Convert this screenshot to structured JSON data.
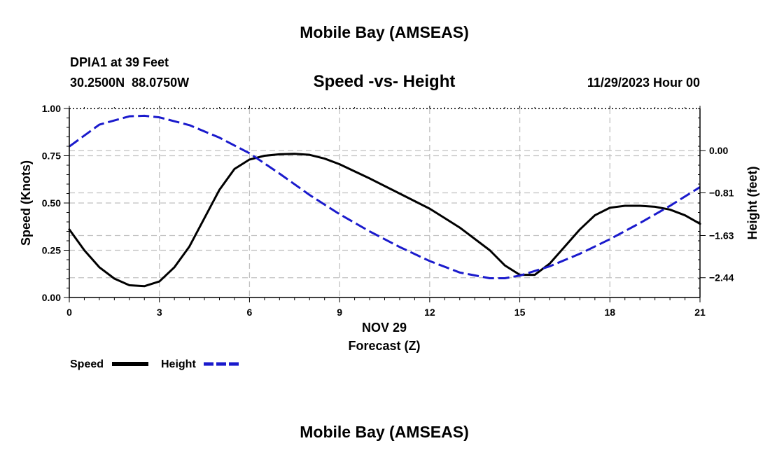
{
  "header": {
    "title_top": "Mobile Bay (AMSEAS)",
    "title_bottom": "Mobile Bay (AMSEAS)",
    "station": "DPIA1 at 39 Feet",
    "coords": "30.2500N  88.0750W",
    "date": "11/29/2023 Hour 00"
  },
  "colors": {
    "speed": "#000000",
    "height": "#1a1acc",
    "grid": "#c0c0c0"
  },
  "chart_data": {
    "type": "line",
    "title": "Speed -vs- Height",
    "xlabel": "Forecast (Z)",
    "xlabel_date": "NOV 29",
    "ylabel": "Speed (Knots)",
    "y2label": "Height (feet)",
    "xlim": [
      0,
      21
    ],
    "ylim": [
      0,
      1.0
    ],
    "y2lim": [
      -2.82,
      0.81
    ],
    "x_ticks": [
      0,
      3,
      6,
      9,
      12,
      15,
      18,
      21
    ],
    "x_tick_labels": [
      "0",
      "3",
      "6",
      "9",
      "12",
      "15",
      "18",
      "21"
    ],
    "y_ticks": [
      0.0,
      0.25,
      0.5,
      0.75,
      1.0
    ],
    "y_tick_labels": [
      "0.00",
      "0.25",
      "0.50",
      "0.75",
      "1.00"
    ],
    "y2_ticks": [
      0.0,
      -0.81,
      -1.63,
      -2.44
    ],
    "y2_tick_labels": [
      "0.00",
      "−0.81",
      "−1.63",
      "−2.44"
    ],
    "grid": true,
    "series": [
      {
        "name": "Speed",
        "axis": "left",
        "style": "solid",
        "x": [
          0,
          0.5,
          1,
          1.5,
          2,
          2.5,
          3,
          3.5,
          4,
          4.5,
          5,
          5.5,
          6,
          6.5,
          7,
          7.5,
          8,
          8.5,
          9,
          10,
          11,
          12,
          13,
          14,
          14.5,
          15,
          15.5,
          16,
          16.5,
          17,
          17.5,
          18,
          18.5,
          19,
          19.5,
          20,
          20.5,
          21
        ],
        "values": [
          0.36,
          0.25,
          0.16,
          0.1,
          0.065,
          0.06,
          0.085,
          0.16,
          0.27,
          0.42,
          0.57,
          0.68,
          0.73,
          0.75,
          0.758,
          0.76,
          0.755,
          0.735,
          0.705,
          0.63,
          0.55,
          0.47,
          0.37,
          0.25,
          0.17,
          0.12,
          0.12,
          0.18,
          0.27,
          0.36,
          0.435,
          0.475,
          0.485,
          0.485,
          0.48,
          0.465,
          0.435,
          0.39
        ]
      },
      {
        "name": "Height",
        "axis": "right",
        "style": "dashed",
        "x": [
          0,
          1,
          2,
          2.5,
          3,
          4,
          5,
          6,
          7,
          8,
          9,
          10,
          11,
          12,
          13,
          14,
          14.5,
          15,
          16,
          17,
          18,
          19,
          20,
          21
        ],
        "values": [
          0.08,
          0.5,
          0.66,
          0.67,
          0.64,
          0.49,
          0.25,
          -0.05,
          -0.44,
          -0.85,
          -1.22,
          -1.55,
          -1.85,
          -2.12,
          -2.34,
          -2.45,
          -2.45,
          -2.4,
          -2.22,
          -1.98,
          -1.7,
          -1.39,
          -1.06,
          -0.7
        ]
      }
    ],
    "legend": {
      "position": "bottom-left",
      "entries": [
        "Speed",
        "Height"
      ]
    }
  }
}
